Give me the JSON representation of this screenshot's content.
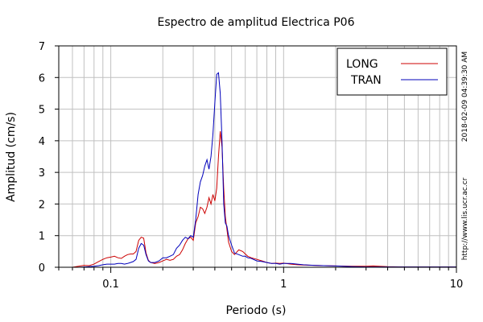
{
  "chart_data": {
    "type": "line",
    "title": "Espectro de amplitud Electrica P06",
    "xlabel": "Periodo (s)",
    "ylabel": "Amplitud (cm/s)",
    "x_scale": "log",
    "xlim": [
      0.05,
      10
    ],
    "ylim": [
      0,
      7
    ],
    "x_tick_labels": [
      "0.1",
      "1",
      "10"
    ],
    "y_tick_labels": [
      "0",
      "1",
      "2",
      "3",
      "4",
      "5",
      "6",
      "7"
    ],
    "grid": true,
    "legend_position": "top-right",
    "side_text_timestamp": "2018-02-09 04:39:30 AM",
    "side_text_url": "http://www.lis.ucr.ac.cr",
    "series": [
      {
        "name": "LONG",
        "color": "#cc0000",
        "x": [
          0.06,
          0.065,
          0.07,
          0.075,
          0.08,
          0.085,
          0.09,
          0.095,
          0.1,
          0.105,
          0.11,
          0.115,
          0.12,
          0.125,
          0.13,
          0.135,
          0.14,
          0.145,
          0.15,
          0.155,
          0.16,
          0.165,
          0.17,
          0.18,
          0.19,
          0.2,
          0.21,
          0.22,
          0.23,
          0.24,
          0.25,
          0.26,
          0.27,
          0.28,
          0.29,
          0.3,
          0.31,
          0.32,
          0.33,
          0.34,
          0.35,
          0.36,
          0.37,
          0.38,
          0.39,
          0.4,
          0.41,
          0.42,
          0.43,
          0.44,
          0.45,
          0.46,
          0.47,
          0.48,
          0.5,
          0.52,
          0.55,
          0.58,
          0.6,
          0.62,
          0.65,
          0.7,
          0.75,
          0.8,
          0.85,
          0.9,
          0.95,
          1.0,
          1.1,
          1.2,
          1.3,
          1.5,
          1.7,
          2.0,
          2.5,
          3.0,
          3.3,
          4.0,
          5.0,
          6.0,
          8.0,
          10.0
        ],
        "values": [
          0.0,
          0.03,
          0.06,
          0.05,
          0.1,
          0.18,
          0.25,
          0.3,
          0.32,
          0.35,
          0.3,
          0.28,
          0.35,
          0.4,
          0.42,
          0.42,
          0.5,
          0.85,
          0.95,
          0.92,
          0.45,
          0.22,
          0.15,
          0.12,
          0.15,
          0.2,
          0.25,
          0.22,
          0.25,
          0.35,
          0.4,
          0.55,
          0.75,
          0.9,
          0.95,
          0.85,
          1.4,
          1.6,
          1.9,
          1.85,
          1.7,
          1.9,
          2.2,
          2.0,
          2.3,
          2.1,
          2.5,
          3.5,
          4.3,
          3.8,
          2.5,
          1.6,
          1.2,
          0.8,
          0.5,
          0.4,
          0.55,
          0.5,
          0.42,
          0.35,
          0.3,
          0.25,
          0.2,
          0.15,
          0.12,
          0.13,
          0.12,
          0.13,
          0.1,
          0.08,
          0.07,
          0.06,
          0.05,
          0.04,
          0.03,
          0.03,
          0.04,
          0.02,
          0.01,
          0.01,
          0.01,
          0.01
        ]
      },
      {
        "name": "TRAN",
        "color": "#0000bb",
        "x": [
          0.06,
          0.065,
          0.07,
          0.075,
          0.08,
          0.085,
          0.09,
          0.095,
          0.1,
          0.105,
          0.11,
          0.115,
          0.12,
          0.125,
          0.13,
          0.135,
          0.14,
          0.145,
          0.15,
          0.155,
          0.16,
          0.165,
          0.17,
          0.18,
          0.19,
          0.2,
          0.21,
          0.22,
          0.23,
          0.24,
          0.25,
          0.26,
          0.27,
          0.28,
          0.29,
          0.3,
          0.31,
          0.32,
          0.33,
          0.34,
          0.35,
          0.36,
          0.37,
          0.38,
          0.39,
          0.4,
          0.41,
          0.42,
          0.43,
          0.44,
          0.45,
          0.46,
          0.47,
          0.48,
          0.5,
          0.52,
          0.55,
          0.58,
          0.6,
          0.62,
          0.65,
          0.7,
          0.75,
          0.8,
          0.85,
          0.9,
          0.95,
          1.0,
          1.1,
          1.2,
          1.3,
          1.5,
          1.7,
          2.0,
          2.5,
          3.0,
          3.3,
          4.0,
          5.0,
          6.0,
          8.0,
          10.0
        ],
        "values": [
          0.0,
          0.0,
          0.01,
          0.02,
          0.03,
          0.05,
          0.08,
          0.1,
          0.1,
          0.1,
          0.12,
          0.12,
          0.1,
          0.12,
          0.15,
          0.18,
          0.25,
          0.6,
          0.75,
          0.7,
          0.4,
          0.2,
          0.15,
          0.15,
          0.2,
          0.3,
          0.3,
          0.35,
          0.4,
          0.6,
          0.7,
          0.85,
          0.95,
          0.9,
          1.0,
          0.95,
          1.5,
          2.3,
          2.7,
          2.9,
          3.2,
          3.4,
          3.1,
          3.5,
          4.2,
          5.2,
          6.1,
          6.15,
          5.5,
          4.0,
          2.0,
          1.4,
          1.3,
          1.0,
          0.7,
          0.45,
          0.4,
          0.35,
          0.35,
          0.3,
          0.28,
          0.2,
          0.18,
          0.15,
          0.12,
          0.12,
          0.1,
          0.12,
          0.12,
          0.1,
          0.08,
          0.06,
          0.05,
          0.04,
          0.02,
          0.01,
          0.01,
          0.01,
          0.01,
          0.01,
          0.01,
          0.01
        ]
      }
    ]
  }
}
